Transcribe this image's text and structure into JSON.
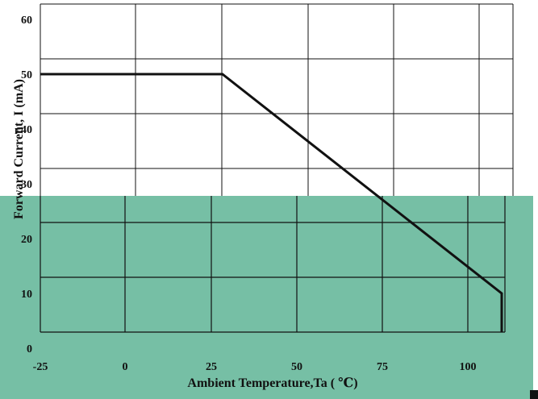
{
  "chart_data": {
    "type": "line",
    "xlabel": "Ambient Temperature,Ta ( ℃)",
    "ylabel": "Forward Current, I (mA)",
    "ylabel_subscript": "F",
    "x_ticks": [
      "-25",
      "0",
      "25",
      "50",
      "75",
      "100"
    ],
    "y_ticks": [
      "0",
      "10",
      "20",
      "30",
      "40",
      "50",
      "60"
    ],
    "xlim": [
      -25,
      112
    ],
    "ylim": [
      0,
      60
    ],
    "grid": true,
    "series": [
      {
        "x": [
          -25,
          28,
          110,
          110
        ],
        "y": [
          50,
          50,
          10,
          0
        ]
      }
    ],
    "colors": {
      "top_panel": "#ffffff",
      "bottom_panel": "#76bfa5",
      "line": "#111111",
      "grid": "#111111"
    }
  }
}
